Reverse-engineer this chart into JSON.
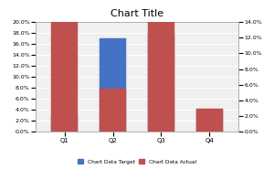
{
  "categories": [
    "Q1",
    "Q2",
    "Q3",
    "Q4"
  ],
  "target": [
    0.03,
    0.17,
    0.18,
    0.04
  ],
  "actual": [
    0.17,
    0.055,
    0.14,
    0.03
  ],
  "target_color": "#4472C4",
  "actual_color": "#C0504D",
  "title": "Chart Title",
  "left_ylim": [
    0.0,
    0.2
  ],
  "right_ylim": [
    0.0,
    0.14
  ],
  "left_yticks": [
    0.0,
    0.02,
    0.04,
    0.06,
    0.08,
    0.1,
    0.12,
    0.14,
    0.16,
    0.18,
    0.2
  ],
  "right_yticks": [
    0.0,
    0.02,
    0.04,
    0.06,
    0.08,
    0.1,
    0.12,
    0.14
  ],
  "legend_labels": [
    "Chart Data Target",
    "Chart Data Actual"
  ],
  "bg_color": "#F0F0F0",
  "bar_width": 0.55
}
